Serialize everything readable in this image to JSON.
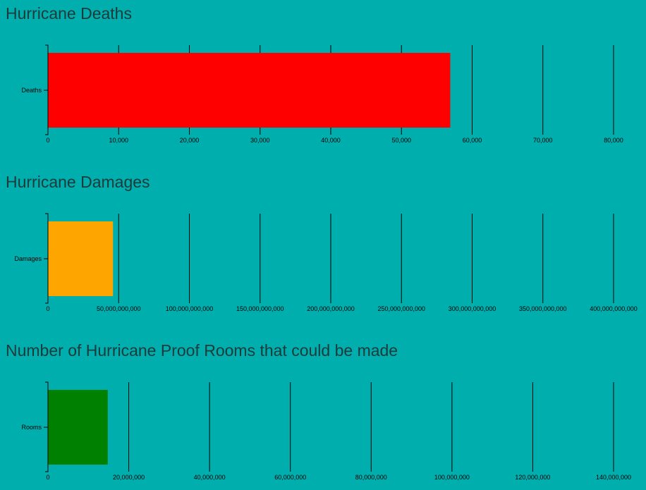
{
  "chart_data": [
    {
      "type": "bar",
      "orientation": "horizontal",
      "title": "Hurricane Deaths",
      "categories": [
        "Deaths"
      ],
      "values": [
        56900
      ],
      "xlim": [
        0,
        80000
      ],
      "ticks": [
        0,
        10000,
        20000,
        30000,
        40000,
        50000,
        60000,
        70000,
        80000
      ],
      "tick_labels": [
        "0",
        "10,000",
        "20,000",
        "30,000",
        "40,000",
        "50,000",
        "60,000",
        "70,000",
        "80,000"
      ],
      "color": "#FF0000",
      "grid": true
    },
    {
      "type": "bar",
      "orientation": "horizontal",
      "title": "Hurricane Damages",
      "categories": [
        "Damages"
      ],
      "values": [
        46000000000
      ],
      "xlim": [
        0,
        400000000000
      ],
      "ticks": [
        0,
        50000000000,
        100000000000,
        150000000000,
        200000000000,
        250000000000,
        300000000000,
        350000000000,
        400000000000
      ],
      "tick_labels": [
        "0",
        "50,000,000,000",
        "100,000,000,000",
        "150,000,000,000",
        "200,000,000,000",
        "250,000,000,000",
        "300,000,000,000",
        "350,000,000,000",
        "400,000,000,000"
      ],
      "color": "#FFA500",
      "grid": true
    },
    {
      "type": "bar",
      "orientation": "horizontal",
      "title": "Number of Hurricane Proof Rooms that could be made",
      "categories": [
        "Rooms"
      ],
      "values": [
        14800000
      ],
      "xlim": [
        0,
        140000000
      ],
      "ticks": [
        0,
        20000000,
        40000000,
        60000000,
        80000000,
        100000000,
        120000000,
        140000000
      ],
      "tick_labels": [
        "0",
        "20,000,000",
        "40,000,000",
        "60,000,000",
        "80,000,000",
        "100,000,000",
        "120,000,000",
        "140,000,000"
      ],
      "color": "#008000",
      "grid": true
    }
  ]
}
